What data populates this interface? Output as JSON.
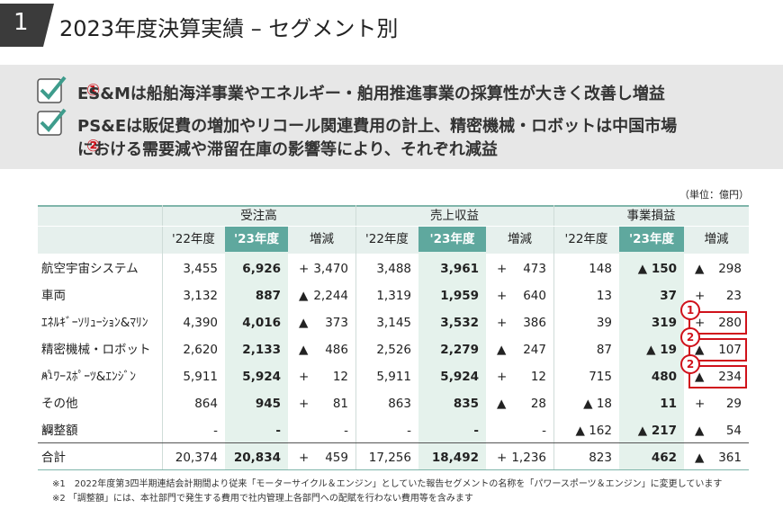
{
  "header": {
    "number": "1",
    "title": "2023年度決算実績 – セグメント別"
  },
  "highlights": [
    {
      "lines": [
        "ES&Mは船舶海洋事業やエネルギー・舶用推進事業の採算性が大きく改善し増益"
      ],
      "marker": "①"
    },
    {
      "lines": [
        "PS&Eは販促費の増加やリコール関連費用の計上、精密機械・ロボットは中国市場",
        "における需要減や滞留在庫の影響等により、それぞれ減益"
      ],
      "marker": "②"
    }
  ],
  "table": {
    "unit": "（単位：億円）",
    "groups": [
      "受注高",
      "売上収益",
      "事業損益"
    ],
    "columns": [
      "'22年度",
      "'23年度",
      "増減"
    ],
    "rows": [
      {
        "label": "航空宇宙システム",
        "cells": [
          [
            "3,455",
            "6,926",
            {
              "sign": "+",
              "amount": "3,470"
            }
          ],
          [
            "3,488",
            "3,961",
            {
              "sign": "+",
              "amount": "473"
            }
          ],
          [
            "148",
            "▲ 150",
            {
              "sign": "▲",
              "amount": "298"
            }
          ]
        ]
      },
      {
        "label": "車両",
        "cells": [
          [
            "3,132",
            "887",
            {
              "sign": "▲",
              "amount": "2,244"
            }
          ],
          [
            "1,319",
            "1,959",
            {
              "sign": "+",
              "amount": "640"
            }
          ],
          [
            "13",
            "37",
            {
              "sign": "+",
              "amount": "23"
            }
          ]
        ]
      },
      {
        "label": "ｴﾈﾙｷﾞｰｿﾘｭｰｼｮﾝ&ﾏﾘﾝ",
        "marker": "1",
        "cells": [
          [
            "4,390",
            "4,016",
            {
              "sign": "▲",
              "amount": "373"
            }
          ],
          [
            "3,145",
            "3,532",
            {
              "sign": "+",
              "amount": "386"
            }
          ],
          [
            "39",
            "319",
            {
              "sign": "+",
              "amount": "280"
            }
          ]
        ]
      },
      {
        "label": "精密機械・ロボット",
        "marker": "2",
        "cells": [
          [
            "2,620",
            "2,133",
            {
              "sign": "▲",
              "amount": "486"
            }
          ],
          [
            "2,526",
            "2,279",
            {
              "sign": "▲",
              "amount": "247"
            }
          ],
          [
            "87",
            "▲ 19",
            {
              "sign": "▲",
              "amount": "107"
            }
          ]
        ]
      },
      {
        "label": "ﾊﾟﾜｰｽﾎﾟｰﾂ&ｴﾝｼﾞﾝ",
        "note": "※1",
        "marker": "2",
        "cells": [
          [
            "5,911",
            "5,924",
            {
              "sign": "+",
              "amount": "12"
            }
          ],
          [
            "5,911",
            "5,924",
            {
              "sign": "+",
              "amount": "12"
            }
          ],
          [
            "715",
            "480",
            {
              "sign": "▲",
              "amount": "234"
            }
          ]
        ]
      },
      {
        "label": "その他",
        "cells": [
          [
            "864",
            "945",
            {
              "sign": "+",
              "amount": "81"
            }
          ],
          [
            "863",
            "835",
            {
              "sign": "▲",
              "amount": "28"
            }
          ],
          [
            "▲ 18",
            "11",
            {
              "sign": "+",
              "amount": "29"
            }
          ]
        ]
      },
      {
        "label": "調整額",
        "note": "※2",
        "cells": [
          [
            "-",
            "-",
            "-"
          ],
          [
            "-",
            "-",
            "-"
          ],
          [
            "▲ 162",
            "▲ 217",
            {
              "sign": "▲",
              "amount": "54"
            }
          ]
        ]
      },
      {
        "label": "合計",
        "cells": [
          [
            "20,374",
            "20,834",
            {
              "sign": "+",
              "amount": "459"
            }
          ],
          [
            "17,256",
            "18,492",
            {
              "sign": "+",
              "amount": "1,236"
            }
          ],
          [
            "823",
            "462",
            {
              "sign": "▲",
              "amount": "361"
            }
          ]
        ]
      }
    ]
  },
  "notes": [
    "※1　2022年度第3四半期連結会計期間より従来「モーターサイクル＆エンジン」としていた報告セグメントの名称を「パワースポーツ＆エンジン」に変更しています",
    "※2 「調整額」には、本社部門で発生する費用で社内管理上各部門への配賦を行わない費用等を含みます"
  ]
}
